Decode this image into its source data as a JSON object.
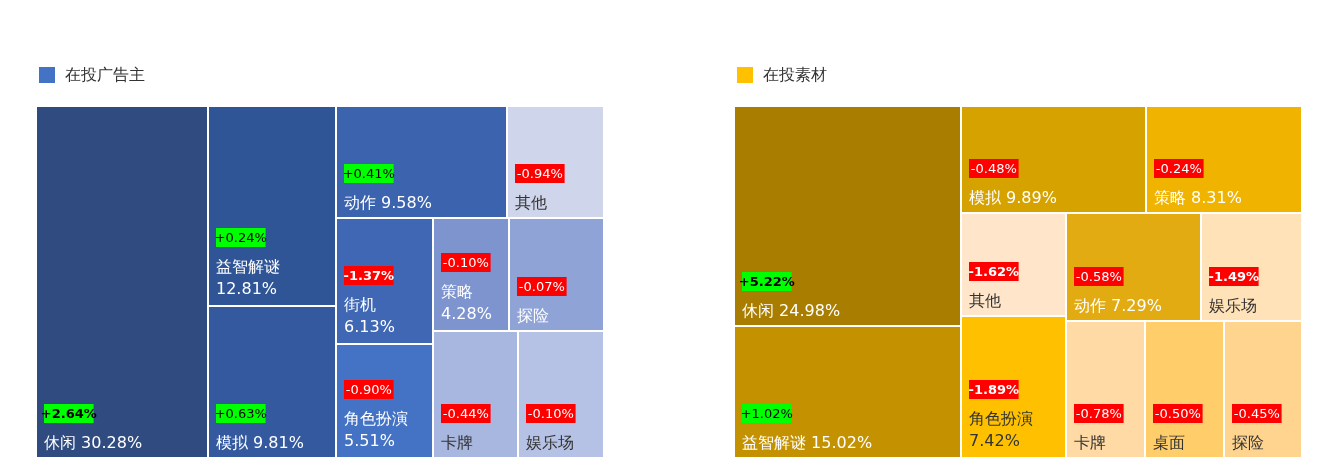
{
  "chart_data": [
    {
      "type": "other",
      "categories": [
        "休闲",
        "益智解谜",
        "模拟",
        "动作",
        "其他",
        "街机",
        "角色扮演",
        "策略",
        "探险",
        "卡牌",
        "娱乐场"
      ],
      "series": [
        {
          "name": "在投广告主",
          "color": "#4472c4",
          "values": [
            30.28,
            12.81,
            9.81,
            9.58,
            null,
            6.13,
            5.51,
            4.28,
            null,
            null,
            null
          ],
          "value_labels": [
            "30.28%",
            "12.81%",
            "9.81%",
            "9.58%",
            null,
            "6.13%",
            "5.51%",
            "4.28%",
            null,
            null,
            null
          ],
          "colors": [
            "#2f4b80",
            "#2f5597",
            "#34599f",
            "#3c63ad",
            "#cfd5ea",
            "#3f67b4",
            "#4472c4",
            "#7d94cf",
            "#8fa3d7",
            "#a8b7e0",
            "#b6c2e5"
          ]
        },
        {
          "values": [
            2.64,
            0.24,
            0.63,
            0.41,
            -0.94,
            -1.37,
            -0.9,
            -0.1,
            -0.07,
            -0.44,
            -0.1
          ],
          "value_labels": [
            "+2.64%",
            "+0.24%",
            "+0.63%",
            "+0.41%",
            "-0.94%",
            "-1.37%",
            "-0.90%",
            "-0.10%",
            "-0.07%",
            "-0.44%",
            "-0.10%"
          ],
          "colors": [
            "#00ff00",
            "#00ff00",
            "#00ff00",
            "#00ff00",
            "#ff0000",
            "#ff0000",
            "#ff0000",
            "#ff0000",
            "#ff0000",
            "#ff0000",
            "#ff0000"
          ]
        }
      ]
    },
    {
      "type": "other",
      "categories": [
        "休闲",
        "益智解谜",
        "模拟",
        "策略",
        "其他",
        "角色扮演",
        "动作",
        "娱乐场",
        "卡牌",
        "桌面",
        "探险"
      ],
      "series": [
        {
          "name": "在投素材",
          "color": "#ffc000",
          "values": [
            24.98,
            15.02,
            9.89,
            8.31,
            null,
            7.42,
            7.29,
            null,
            null,
            null,
            null
          ],
          "value_labels": [
            "24.98%",
            "15.02%",
            "9.89%",
            "8.31%",
            null,
            "7.42%",
            "7.29%",
            null,
            null,
            null,
            null
          ],
          "colors": [
            "#a97d00",
            "#c49200",
            "#d5a200",
            "#f0b400",
            "#ffe6cb",
            "#ffc000",
            "#e2ab12",
            "#ffe2b8",
            "#ffdaa4",
            "#ffcd6a",
            "#ffd48e"
          ]
        },
        {
          "values": [
            5.22,
            1.02,
            -0.48,
            -0.24,
            -1.62,
            -1.89,
            -0.58,
            -1.49,
            -0.78,
            -0.5,
            -0.45
          ],
          "value_labels": [
            "+5.22%",
            "+1.02%",
            "-0.48%",
            "-0.24%",
            "-1.62%",
            "-1.89%",
            "-0.58%",
            "-1.49%",
            "-0.78%",
            "-0.50%",
            "-0.45%"
          ],
          "colors": [
            "#00ff00",
            "#00ff00",
            "#ff0000",
            "#ff0000",
            "#ff0000",
            "#ff0000",
            "#ff0000",
            "#ff0000",
            "#ff0000",
            "#ff0000",
            "#ff0000"
          ]
        }
      ]
    }
  ]
}
